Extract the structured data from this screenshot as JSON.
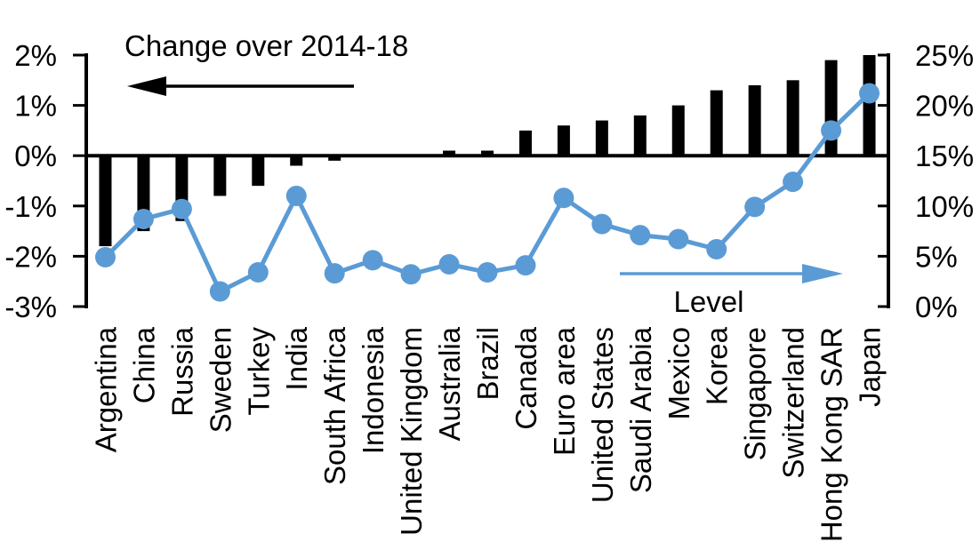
{
  "chart_data": {
    "type": "combo",
    "title": "",
    "categories": [
      "Argentina",
      "China",
      "Russia",
      "Sweden",
      "Turkey",
      "India",
      "South Africa",
      "Indonesia",
      "United Kingdom",
      "Australia",
      "Brazil",
      "Canada",
      "Euro area",
      "United States",
      "Saudi Arabia",
      "Mexico",
      "Korea",
      "Singapore",
      "Switzerland",
      "Hong Kong SAR",
      "Japan"
    ],
    "series": [
      {
        "name": "Change over 2014-18",
        "type": "bar",
        "axis": "left",
        "color": "#000000",
        "values": [
          -1.8,
          -1.5,
          -1.3,
          -0.8,
          -0.6,
          -0.2,
          -0.1,
          0.0,
          0.0,
          0.1,
          0.1,
          0.5,
          0.6,
          0.7,
          0.8,
          1.0,
          1.3,
          1.4,
          1.5,
          1.9,
          2.0
        ]
      },
      {
        "name": "Level",
        "type": "line",
        "axis": "right",
        "color": "#5b9bd5",
        "values": [
          4.9,
          8.7,
          9.7,
          1.5,
          3.4,
          11.0,
          3.3,
          4.6,
          3.2,
          4.2,
          3.4,
          4.1,
          10.8,
          8.2,
          7.1,
          6.7,
          5.7,
          9.9,
          12.4,
          17.5,
          21.2
        ]
      }
    ],
    "left_axis": {
      "tick_labels": [
        "2%",
        "1%",
        "0%",
        "-1%",
        "-2%",
        "-3%"
      ],
      "tick_values": [
        2,
        1,
        0,
        -1,
        -2,
        -3
      ],
      "min": -3,
      "max": 2
    },
    "right_axis": {
      "tick_labels": [
        "25%",
        "20%",
        "15%",
        "10%",
        "5%",
        "0%"
      ],
      "tick_values": [
        25,
        20,
        15,
        10,
        5,
        0
      ],
      "min": 0,
      "max": 25
    },
    "annotations": {
      "left_arrow_label": "Change over 2014-18",
      "right_arrow_label": "Level"
    },
    "grid": false,
    "legend_position": "in-chart arrows"
  }
}
